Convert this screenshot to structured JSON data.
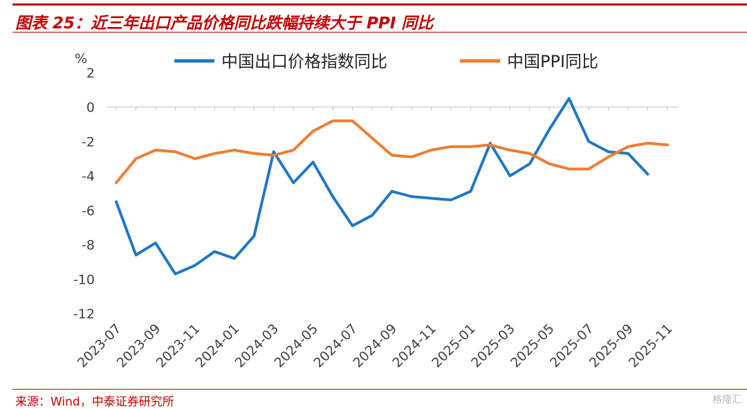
{
  "header": {
    "title": "图表 25：近三年出口产品价格同比跌幅持续大于 PPI 同比"
  },
  "footer": {
    "source": "来源：Wind，中泰证券研究所",
    "watermark": "格隆汇"
  },
  "colors": {
    "accent": "#c00000",
    "series_export": "#1f77c4",
    "series_ppi": "#ed7d31"
  },
  "chart_data": {
    "type": "line",
    "ylabel": "%",
    "ylim": [
      -12,
      2
    ],
    "yticks": [
      2,
      0,
      -2,
      -4,
      -6,
      -8,
      -10,
      -12
    ],
    "x": [
      "2023-07",
      "2023-08",
      "2023-09",
      "2023-10",
      "2023-11",
      "2023-12",
      "2024-01",
      "2024-02",
      "2024-03",
      "2024-04",
      "2024-05",
      "2024-06",
      "2024-07",
      "2024-08",
      "2024-09",
      "2024-10",
      "2024-11",
      "2024-12",
      "2025-01",
      "2025-02",
      "2025-03",
      "2025-04",
      "2025-05",
      "2025-06",
      "2025-07",
      "2025-08",
      "2025-09",
      "2025-10",
      "2025-11"
    ],
    "xtick_labels": [
      "2023-07",
      "2023-09",
      "2023-11",
      "2024-01",
      "2024-03",
      "2024-05",
      "2024-07",
      "2024-09",
      "2024-11",
      "2025-01",
      "2025-03",
      "2025-05",
      "2025-07",
      "2025-09",
      "2025-11"
    ],
    "legend_position": "top",
    "grid": false,
    "series": [
      {
        "name": "中国出口价格指数同比",
        "color": "#1f77c4",
        "values": [
          -5.5,
          -8.6,
          -7.9,
          -9.7,
          -9.2,
          -8.4,
          -8.8,
          -7.5,
          -2.6,
          -4.4,
          -3.2,
          -5.2,
          -6.9,
          -6.3,
          -4.9,
          -5.2,
          -5.3,
          -5.4,
          -4.9,
          -2.1,
          -4.0,
          -3.3,
          -1.3,
          0.5,
          -2.0,
          -2.6,
          -2.7,
          -3.9,
          null
        ]
      },
      {
        "name": "中国PPI同比",
        "color": "#ed7d31",
        "values": [
          -4.4,
          -3.0,
          -2.5,
          -2.6,
          -3.0,
          -2.7,
          -2.5,
          -2.7,
          -2.8,
          -2.5,
          -1.4,
          -0.8,
          -0.8,
          -1.8,
          -2.8,
          -2.9,
          -2.5,
          -2.3,
          -2.3,
          -2.2,
          -2.5,
          -2.7,
          -3.3,
          -3.6,
          -3.6,
          -2.9,
          -2.3,
          -2.1,
          -2.2
        ]
      }
    ]
  }
}
